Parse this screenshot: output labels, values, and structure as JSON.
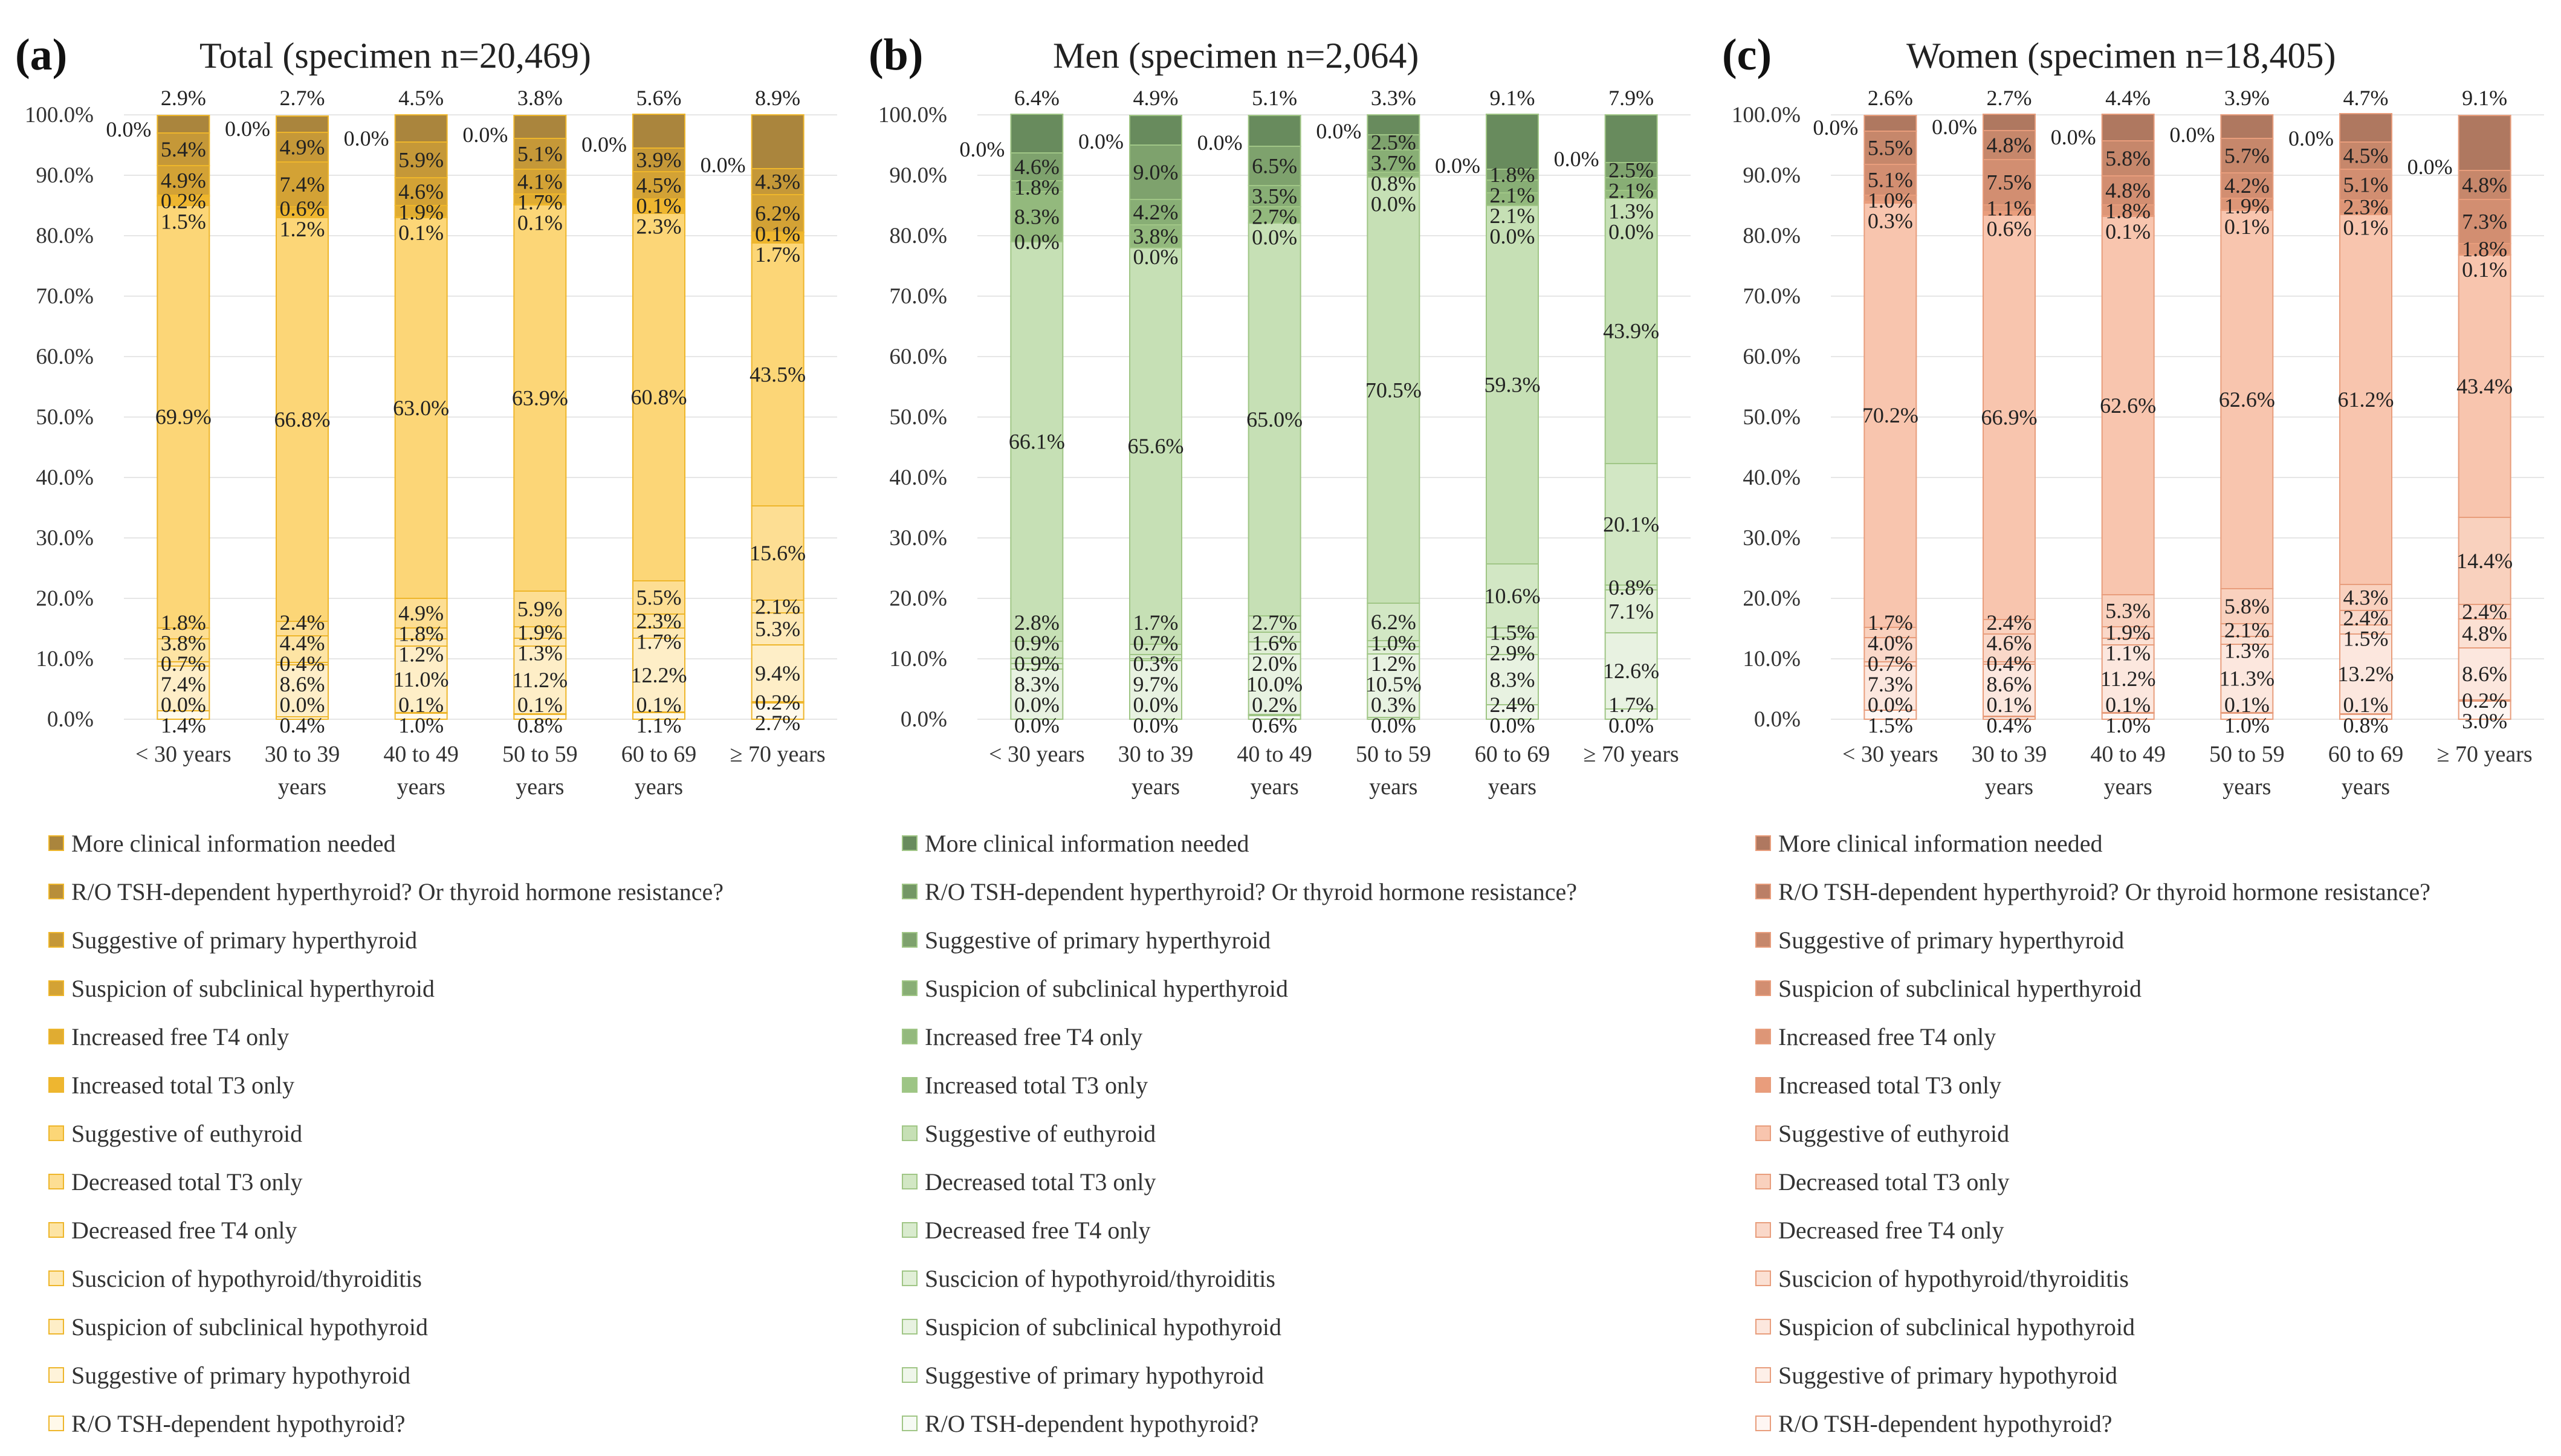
{
  "categories_lines": [
    [
      "< 30 years"
    ],
    [
      "30 to 39",
      "years"
    ],
    [
      "40 to 49",
      "years"
    ],
    [
      "50 to 59",
      "years"
    ],
    [
      "60 to 69",
      "years"
    ],
    [
      "≥ 70 years"
    ]
  ],
  "legend": [
    "More clinical information needed",
    "R/O TSH-dependent hyperthyroid? Or thyroid hormone resistance?",
    "Suggestive of primary hyperthyroid",
    "Suspicion of subclinical hyperthyroid",
    "Increased free T4 only",
    "Increased total T3 only",
    "Suggestive of euthyroid",
    "Decreased total T3 only",
    "Decreased free T4 only",
    "Suscicion of hypothyroid/thyroiditis",
    "Suspicion of subclinical hypothyroid",
    "Suggestive of primary hypothyroid",
    "R/O TSH-dependent hypothyroid?"
  ],
  "chart_data": [
    {
      "type": "bar",
      "stacked": true,
      "panel_letter": "(a)",
      "title": "Total (specimen n=20,469)",
      "categories": [
        "< 30 years",
        "30 to 39 years",
        "40 to 49 years",
        "50 to 59 years",
        "60 to 69 years",
        "≥ 70 years"
      ],
      "ylim": [
        0,
        100
      ],
      "yticks": [
        "0.0%",
        "10.0%",
        "20.0%",
        "30.0%",
        "40.0%",
        "50.0%",
        "60.0%",
        "70.0%",
        "80.0%",
        "90.0%",
        "100.0%"
      ],
      "base_color": "#fbc02d",
      "dark_color": "#9c7a40",
      "series": [
        {
          "name": "R/O TSH-dependent hypothyroid?",
          "values": [
            1.4,
            0.4,
            1.0,
            0.8,
            1.1,
            2.7
          ],
          "labels": [
            "1.4%",
            "0.4%",
            "1.0%",
            "0.8%",
            "1.1%",
            "2.7%"
          ]
        },
        {
          "name": "Suggestive of primary hypothyroid",
          "values": [
            0.0,
            0.0,
            0.1,
            0.1,
            0.1,
            0.2
          ],
          "labels": [
            "0.0%",
            "0.0%",
            "0.1%",
            "0.1%",
            "0.1%",
            "0.2%"
          ]
        },
        {
          "name": "Suspicion of subclinical hypothyroid",
          "values": [
            7.4,
            8.6,
            11.0,
            11.2,
            12.2,
            9.4
          ],
          "labels": [
            "7.4%",
            "8.6%",
            "11.0%",
            "11.2%",
            "12.2%",
            "9.4%"
          ]
        },
        {
          "name": "Suscicion of hypothyroid/thyroiditis",
          "values": [
            0.7,
            0.4,
            1.2,
            1.3,
            1.7,
            5.3
          ],
          "labels": [
            "0.7%",
            "0.4%",
            "1.2%",
            "1.3%",
            "1.7%",
            "5.3%"
          ]
        },
        {
          "name": "Decreased free T4 only",
          "values": [
            3.8,
            4.4,
            1.8,
            1.9,
            2.3,
            2.1
          ],
          "labels": [
            "3.8%",
            "4.4%",
            "1.8%",
            "1.9%",
            "2.3%",
            "2.1%"
          ]
        },
        {
          "name": "Decreased total T3 only",
          "values": [
            1.8,
            2.4,
            4.9,
            5.9,
            5.5,
            15.6
          ],
          "labels": [
            "1.8%",
            "2.4%",
            "4.9%",
            "5.9%",
            "5.5%",
            "15.6%"
          ]
        },
        {
          "name": "Suggestive of euthyroid",
          "values": [
            69.9,
            66.8,
            63.0,
            63.9,
            60.8,
            43.5
          ],
          "labels": [
            "69.9%",
            "66.8%",
            "63.0%",
            "63.9%",
            "60.8%",
            "43.5%"
          ]
        },
        {
          "name": "Increased total T3 only",
          "values": [
            1.5,
            1.2,
            0.1,
            0.1,
            2.3,
            1.7
          ],
          "labels": [
            "1.5%",
            "1.2%",
            "0.1%",
            "0.1%",
            "2.3%",
            "1.7%"
          ]
        },
        {
          "name": "Increased free T4 only",
          "values": [
            0.2,
            0.6,
            1.9,
            1.7,
            0.1,
            0.1
          ],
          "labels": [
            "0.2%",
            "0.6%",
            "1.9%",
            "1.7%",
            "0.1%",
            "0.1%"
          ]
        },
        {
          "name": "Suspicion of subclinical hyperthyroid",
          "values": [
            4.9,
            7.4,
            4.6,
            4.1,
            4.5,
            6.2
          ],
          "labels": [
            "4.9%",
            "7.4%",
            "4.6%",
            "4.1%",
            "4.5%",
            "6.2%"
          ]
        },
        {
          "name": "Suggestive of primary hyperthyroid",
          "values": [
            5.4,
            4.9,
            5.9,
            5.1,
            3.9,
            4.3
          ],
          "labels": [
            "5.4%",
            "4.9%",
            "5.9%",
            "5.1%",
            "3.9%",
            "4.3%"
          ]
        },
        {
          "name": "R/O TSH-dependent hyperthyroid? Or thyroid hormone resistance?",
          "values": [
            0.0,
            0.0,
            0.0,
            0.0,
            0.0,
            0.0
          ],
          "labels": [
            "0.0%",
            "0.0%",
            "0.0%",
            "0.0%",
            "0.0%",
            "0.0%"
          ]
        },
        {
          "name": "More clinical information needed",
          "values": [
            2.9,
            2.7,
            4.5,
            3.8,
            5.6,
            8.9
          ],
          "labels": [
            "2.9%",
            "2.7%",
            "4.5%",
            "3.8%",
            "5.6%",
            "8.9%"
          ]
        }
      ]
    },
    {
      "type": "bar",
      "stacked": true,
      "panel_letter": "(b)",
      "title": "Men (specimen n=2,064)",
      "categories": [
        "< 30 years",
        "30 to 39 years",
        "40 to 49 years",
        "50 to 59 years",
        "60 to 69 years",
        "≥ 70 years"
      ],
      "ylim": [
        0,
        100
      ],
      "yticks": [
        "0.0%",
        "10.0%",
        "20.0%",
        "30.0%",
        "40.0%",
        "50.0%",
        "60.0%",
        "70.0%",
        "80.0%",
        "90.0%",
        "100.0%"
      ],
      "base_color": "#a8d08d",
      "dark_color": "#5d7f55",
      "series": [
        {
          "name": "R/O TSH-dependent hypothyroid?",
          "values": [
            0.0,
            0.0,
            0.6,
            0.0,
            0.0,
            0.0
          ],
          "labels": [
            "0.0%",
            "0.0%",
            "0.6%",
            "0.0%",
            "0.0%",
            "0.0%"
          ]
        },
        {
          "name": "Suggestive of primary hypothyroid",
          "values": [
            0.0,
            0.0,
            0.2,
            0.3,
            2.4,
            1.7
          ],
          "labels": [
            "0.0%",
            "0.0%",
            "0.2%",
            "0.3%",
            "2.4%",
            "1.7%"
          ]
        },
        {
          "name": "Suspicion of subclinical hypothyroid",
          "values": [
            8.3,
            9.7,
            10.0,
            10.5,
            8.3,
            12.6
          ],
          "labels": [
            "8.3%",
            "9.7%",
            "10.0%",
            "10.5%",
            "8.3%",
            "12.6%"
          ]
        },
        {
          "name": "Suscicion of hypothyroid/thyroiditis",
          "values": [
            0.9,
            0.3,
            2.0,
            1.2,
            2.9,
            7.1
          ],
          "labels": [
            "0.9%",
            "0.3%",
            "2.0%",
            "1.2%",
            "2.9%",
            "7.1%"
          ]
        },
        {
          "name": "Decreased free T4 only",
          "values": [
            0.9,
            0.7,
            1.6,
            1.0,
            1.5,
            0.8
          ],
          "labels": [
            "0.9%",
            "0.7%",
            "1.6%",
            "1.0%",
            "1.5%",
            "0.8%"
          ]
        },
        {
          "name": "Decreased total T3 only",
          "values": [
            2.8,
            1.7,
            2.7,
            6.2,
            10.6,
            20.1
          ],
          "labels": [
            "2.8%",
            "1.7%",
            "2.7%",
            "6.2%",
            "10.6%",
            "20.1%"
          ]
        },
        {
          "name": "Suggestive of euthyroid",
          "values": [
            66.1,
            65.6,
            65.0,
            70.5,
            59.3,
            43.9
          ],
          "labels": [
            "66.1%",
            "65.6%",
            "65.0%",
            "70.5%",
            "59.3%",
            "43.9%"
          ]
        },
        {
          "name": "Increased total T3 only",
          "values": [
            0.0,
            0.0,
            0.0,
            0.0,
            0.0,
            0.0
          ],
          "labels": [
            "0.0%",
            "0.0%",
            "0.0%",
            "0.0%",
            "0.0%",
            "0.0%"
          ]
        },
        {
          "name": "Increased free T4 only",
          "values": [
            8.3,
            3.8,
            2.7,
            0.8,
            2.1,
            1.3
          ],
          "labels": [
            "8.3%",
            "3.8%",
            "2.7%",
            "0.8%",
            "2.1%",
            "1.3%"
          ]
        },
        {
          "name": "Suspicion of subclinical hyperthyroid",
          "values": [
            1.8,
            4.2,
            3.5,
            3.7,
            2.1,
            2.1
          ],
          "labels": [
            "1.8%",
            "4.2%",
            "3.5%",
            "3.7%",
            "2.1%",
            "2.1%"
          ]
        },
        {
          "name": "Suggestive of primary hyperthyroid",
          "values": [
            4.6,
            9.0,
            6.5,
            2.5,
            1.8,
            2.5
          ],
          "labels": [
            "4.6%",
            "9.0%",
            "6.5%",
            "2.5%",
            "1.8%",
            "2.5%"
          ]
        },
        {
          "name": "R/O TSH-dependent hyperthyroid? Or thyroid hormone resistance?",
          "values": [
            0.0,
            0.0,
            0.0,
            0.0,
            0.0,
            0.0
          ],
          "labels": [
            "0.0%",
            "0.0%",
            "0.0%",
            "0.0%",
            "0.0%",
            "0.0%"
          ]
        },
        {
          "name": "More clinical information needed",
          "values": [
            6.4,
            4.9,
            5.1,
            3.3,
            9.1,
            7.9
          ],
          "labels": [
            "6.4%",
            "4.9%",
            "5.1%",
            "3.3%",
            "9.1%",
            "7.9%"
          ]
        }
      ]
    },
    {
      "type": "bar",
      "stacked": true,
      "panel_letter": "(c)",
      "title": "Women (specimen n=18,405)",
      "categories": [
        "< 30 years",
        "30 to 39 years",
        "40 to 49 years",
        "50 to 59 years",
        "60 to 69 years",
        "≥ 70 years"
      ],
      "ylim": [
        0,
        100
      ],
      "yticks": [
        "0.0%",
        "10.0%",
        "20.0%",
        "30.0%",
        "40.0%",
        "50.0%",
        "60.0%",
        "70.0%",
        "80.0%",
        "90.0%",
        "100.0%"
      ],
      "base_color": "#f4a582",
      "dark_color": "#a3705a",
      "series": [
        {
          "name": "R/O TSH-dependent hypothyroid?",
          "values": [
            1.5,
            0.4,
            1.0,
            1.0,
            0.8,
            3.0
          ],
          "labels": [
            "1.5%",
            "0.4%",
            "1.0%",
            "1.0%",
            "0.8%",
            "3.0%"
          ]
        },
        {
          "name": "Suggestive of primary hypothyroid",
          "values": [
            0.0,
            0.1,
            0.1,
            0.1,
            0.1,
            0.2
          ],
          "labels": [
            "0.0%",
            "0.1%",
            "0.1%",
            "0.1%",
            "0.1%",
            "0.2%"
          ]
        },
        {
          "name": "Suspicion of subclinical hypothyroid",
          "values": [
            7.3,
            8.6,
            11.2,
            11.3,
            13.2,
            8.6
          ],
          "labels": [
            "7.3%",
            "8.6%",
            "11.2%",
            "11.3%",
            "13.2%",
            "8.6%"
          ]
        },
        {
          "name": "Suscicion of hypothyroid/thyroiditis",
          "values": [
            0.7,
            0.4,
            1.1,
            1.3,
            1.5,
            4.8
          ],
          "labels": [
            "0.7%",
            "0.4%",
            "1.1%",
            "1.3%",
            "1.5%",
            "4.8%"
          ]
        },
        {
          "name": "Decreased free T4 only",
          "values": [
            4.0,
            4.6,
            1.9,
            2.1,
            2.4,
            2.4
          ],
          "labels": [
            "4.0%",
            "4.6%",
            "1.9%",
            "2.1%",
            "2.4%",
            "2.4%"
          ]
        },
        {
          "name": "Decreased total T3 only",
          "values": [
            1.7,
            2.4,
            5.3,
            5.8,
            4.3,
            14.4
          ],
          "labels": [
            "1.7%",
            "2.4%",
            "5.3%",
            "5.8%",
            "4.3%",
            "14.4%"
          ]
        },
        {
          "name": "Suggestive of euthyroid",
          "values": [
            70.2,
            66.9,
            62.6,
            62.6,
            61.2,
            43.4
          ],
          "labels": [
            "70.2%",
            "66.9%",
            "62.6%",
            "62.6%",
            "61.2%",
            "43.4%"
          ]
        },
        {
          "name": "Increased total T3 only",
          "values": [
            0.3,
            0.6,
            0.1,
            0.1,
            0.1,
            0.1
          ],
          "labels": [
            "0.3%",
            "0.6%",
            "0.1%",
            "0.1%",
            "0.1%",
            "0.1%"
          ]
        },
        {
          "name": "Increased free T4 only",
          "values": [
            1.0,
            1.1,
            1.8,
            1.9,
            2.3,
            1.8
          ],
          "labels": [
            "1.0%",
            "1.1%",
            "1.8%",
            "1.9%",
            "2.3%",
            "1.8%"
          ]
        },
        {
          "name": "Suspicion of subclinical hyperthyroid",
          "values": [
            5.1,
            7.5,
            4.8,
            4.2,
            5.1,
            7.3
          ],
          "labels": [
            "5.1%",
            "7.5%",
            "4.8%",
            "4.2%",
            "5.1%",
            "7.3%"
          ]
        },
        {
          "name": "Suggestive of primary hyperthyroid",
          "values": [
            5.5,
            4.8,
            5.8,
            5.7,
            4.5,
            4.8
          ],
          "labels": [
            "5.5%",
            "4.8%",
            "5.8%",
            "5.7%",
            "4.5%",
            "4.8%"
          ]
        },
        {
          "name": "R/O TSH-dependent hyperthyroid? Or thyroid hormone resistance?",
          "values": [
            0.0,
            0.0,
            0.0,
            0.0,
            0.0,
            0.0
          ],
          "labels": [
            "0.0%",
            "0.0%",
            "0.0%",
            "0.0%",
            "0.0%",
            "0.0%"
          ]
        },
        {
          "name": "More clinical information needed",
          "values": [
            2.6,
            2.7,
            4.4,
            3.9,
            4.7,
            9.1
          ],
          "labels": [
            "2.6%",
            "2.7%",
            "4.4%",
            "3.9%",
            "4.7%",
            "9.1%"
          ]
        }
      ]
    }
  ]
}
